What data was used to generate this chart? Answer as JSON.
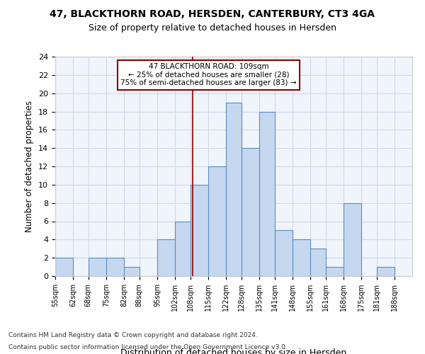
{
  "title_line1": "47, BLACKTHORN ROAD, HERSDEN, CANTERBURY, CT3 4GA",
  "title_line2": "Size of property relative to detached houses in Hersden",
  "xlabel": "Distribution of detached houses by size in Hersden",
  "ylabel": "Number of detached properties",
  "bin_labels": [
    "55sqm",
    "62sqm",
    "68sqm",
    "75sqm",
    "82sqm",
    "88sqm",
    "95sqm",
    "102sqm",
    "108sqm",
    "115sqm",
    "122sqm",
    "128sqm",
    "135sqm",
    "141sqm",
    "148sqm",
    "155sqm",
    "161sqm",
    "168sqm",
    "175sqm",
    "181sqm",
    "188sqm"
  ],
  "bin_edges": [
    55,
    62,
    68,
    75,
    82,
    88,
    95,
    102,
    108,
    115,
    122,
    128,
    135,
    141,
    148,
    155,
    161,
    168,
    175,
    181,
    188,
    195
  ],
  "counts": [
    2,
    0,
    2,
    2,
    1,
    0,
    4,
    6,
    10,
    12,
    19,
    14,
    18,
    5,
    4,
    3,
    1,
    8,
    0,
    1,
    0
  ],
  "bar_color": "#c5d8f0",
  "bar_edge_color": "#5a8fc0",
  "property_size": 109,
  "vline_color": "#8b0000",
  "annotation_text": "47 BLACKTHORN ROAD: 109sqm\n← 25% of detached houses are smaller (28)\n75% of semi-detached houses are larger (83) →",
  "annotation_box_color": "#ffffff",
  "annotation_box_edge": "#8b0000",
  "ylim": [
    0,
    24
  ],
  "yticks": [
    0,
    2,
    4,
    6,
    8,
    10,
    12,
    14,
    16,
    18,
    20,
    22,
    24
  ],
  "grid_color": "#d0d8e8",
  "footer1": "Contains HM Land Registry data © Crown copyright and database right 2024.",
  "footer2": "Contains public sector information licensed under the Open Government Licence v3.0.",
  "bg_color": "#f0f4fb"
}
